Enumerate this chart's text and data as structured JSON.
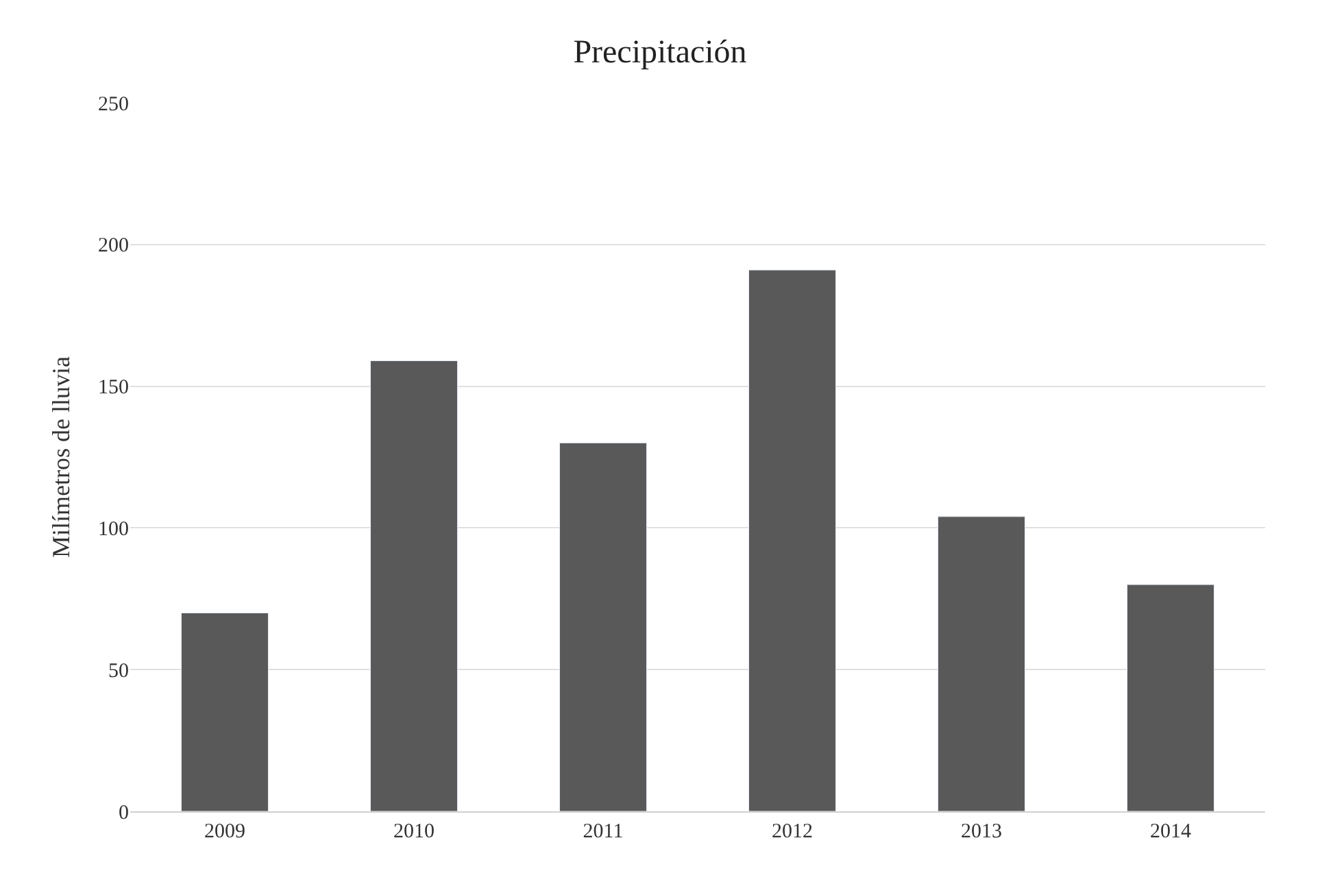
{
  "chart_data": {
    "type": "bar",
    "title": "Precipitación",
    "ylabel": "Milímetros de lluvia",
    "categories": [
      "2009",
      "2010",
      "2011",
      "2012",
      "2013",
      "2014"
    ],
    "values": [
      70,
      159,
      130,
      191,
      104,
      80
    ],
    "color": "#595959",
    "ylim": [
      0,
      250
    ],
    "yticks": [
      0,
      50,
      100,
      150,
      200,
      250
    ],
    "grid": "y"
  }
}
